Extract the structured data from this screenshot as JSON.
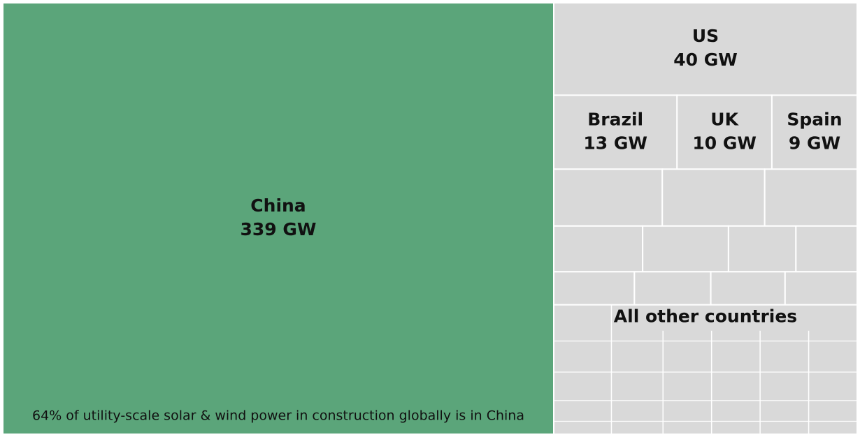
{
  "chart_data": {
    "type": "treemap",
    "categories": [
      "China",
      "US",
      "Brazil",
      "UK",
      "Spain",
      null,
      null,
      null,
      null,
      null,
      null,
      null,
      null,
      null,
      null,
      null,
      "All other countries"
    ],
    "values": [
      339,
      40,
      13,
      10,
      9,
      8.8,
      8.3,
      7.5,
      5.8,
      5.6,
      4.4,
      4.0,
      3.8,
      3.6,
      3.5,
      3.4,
      56
    ],
    "value_labels": [
      "339 GW",
      "40 GW",
      "13 GW",
      "10 GW",
      "9 GW",
      null,
      null,
      null,
      null,
      null,
      null,
      null,
      null,
      null,
      null,
      null,
      null
    ],
    "colors": [
      "#5ba57a",
      "#d9d9d9"
    ],
    "annotation": "64% of utility-scale solar & wind power in construction globally is in China"
  }
}
